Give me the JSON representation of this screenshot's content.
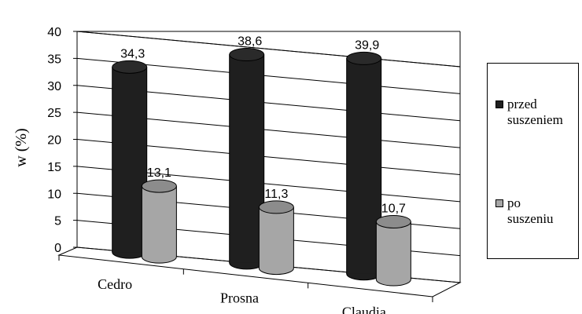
{
  "chart_data": {
    "type": "bar",
    "variant": "3d-cylinder",
    "title": "",
    "xlabel": "",
    "ylabel": "w (%)",
    "ylim": [
      0,
      40
    ],
    "yticks": [
      "0",
      "5",
      "10",
      "15",
      "20",
      "25",
      "30",
      "35",
      "40"
    ],
    "categories": [
      "Cedro",
      "Prosna",
      "Claudia"
    ],
    "series": [
      {
        "name": "przed suszeniem",
        "values": [
          34.3,
          38.6,
          39.9
        ],
        "labels": [
          "34,3",
          "38,6",
          "39,9"
        ],
        "color": "#1f1f1f"
      },
      {
        "name": "po suszeniu",
        "values": [
          13.1,
          11.3,
          10.7
        ],
        "labels": [
          "13,1",
          "11,3",
          "10,7"
        ],
        "color": "#a6a6a6"
      }
    ],
    "grid": true,
    "legend_position": "right"
  },
  "legend": {
    "items": [
      {
        "line1": "przed",
        "line2": "suszeniem"
      },
      {
        "line1": "po",
        "line2": "suszeniu"
      }
    ]
  }
}
